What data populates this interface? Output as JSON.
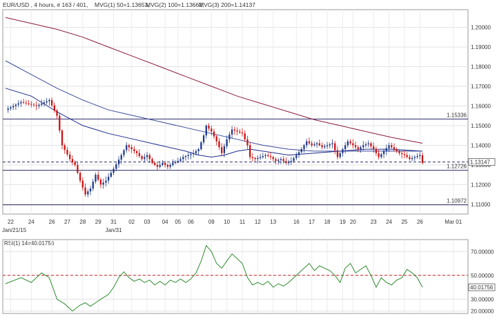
{
  "header": {
    "symbol": "EUR/USD , 4 hours, # 163 / 401,",
    "ma1": "MVG(1) 50=1.13653,",
    "ma2": "MVG(2) 100=1.13662,",
    "ma3": "MVG(3) 200=1.14137"
  },
  "colors": {
    "bull_candle": "#1f3a8a",
    "bear_candle": "#cc1111",
    "ma1": "#1a2a8a",
    "ma2": "#3a4a9a",
    "ma3": "#8b1a3a",
    "rsi": "#2e8b2e",
    "rsi_ref": "#cc2222",
    "hline": "#2a2a6a"
  },
  "chart_data": [
    {
      "type": "candlestick",
      "title": "",
      "x_tick_labels": [
        "22",
        "24",
        "26",
        "27",
        "28",
        "29",
        "31",
        "02",
        "03",
        "04",
        "05",
        "06",
        "09",
        "10",
        "11",
        "12",
        "13",
        "16",
        "17",
        "18",
        "19",
        "20",
        "23",
        "24",
        "25",
        "26",
        "Mar 01"
      ],
      "date_labels": [
        "Jan/21/15",
        "Jan/31"
      ],
      "y_tick_labels": [
        "1.20000",
        "1.19000",
        "1.18000",
        "1.17000",
        "1.16000",
        "1.15000",
        "1.14000",
        "1.13000",
        "1.12000",
        "1.11000"
      ],
      "ylim": [
        1.105,
        1.209
      ],
      "grid": true,
      "horizontal_levels": [
        {
          "value": 1.15336,
          "label": "1.15336",
          "style": "solid"
        },
        {
          "value": 1.12726,
          "label": "1.12726",
          "style": "solid"
        },
        {
          "value": 1.10972,
          "label": "1.10972",
          "style": "solid"
        },
        {
          "value": 1.13147,
          "label": "1.13147",
          "style": "dashed",
          "note": "current price"
        }
      ],
      "close_path": [
        [
          0,
          1.158
        ],
        [
          6,
          1.162
        ],
        [
          12,
          1.16
        ],
        [
          17,
          1.163
        ],
        [
          20,
          1.155
        ],
        [
          22,
          1.14
        ],
        [
          25,
          1.133
        ],
        [
          27,
          1.13
        ],
        [
          29,
          1.122
        ],
        [
          31,
          1.115
        ],
        [
          33,
          1.118
        ],
        [
          35,
          1.125
        ],
        [
          37,
          1.12
        ],
        [
          39,
          1.122
        ],
        [
          42,
          1.128
        ],
        [
          45,
          1.135
        ],
        [
          47,
          1.14
        ],
        [
          49,
          1.138
        ],
        [
          51,
          1.136
        ],
        [
          53,
          1.133
        ],
        [
          55,
          1.135
        ],
        [
          57,
          1.131
        ],
        [
          59,
          1.129
        ],
        [
          61,
          1.131
        ],
        [
          63,
          1.129
        ],
        [
          65,
          1.131
        ],
        [
          67,
          1.132
        ],
        [
          69,
          1.134
        ],
        [
          71,
          1.135
        ],
        [
          73,
          1.136
        ],
        [
          75,
          1.138
        ],
        [
          77,
          1.145
        ],
        [
          78,
          1.15
        ],
        [
          80,
          1.147
        ],
        [
          82,
          1.142
        ],
        [
          84,
          1.136
        ],
        [
          86,
          1.143
        ],
        [
          88,
          1.148
        ],
        [
          90,
          1.147
        ],
        [
          92,
          1.146
        ],
        [
          94,
          1.14
        ],
        [
          95,
          1.134
        ],
        [
          97,
          1.133
        ],
        [
          99,
          1.134
        ],
        [
          101,
          1.135
        ],
        [
          103,
          1.134
        ],
        [
          105,
          1.132
        ],
        [
          107,
          1.133
        ],
        [
          109,
          1.131
        ],
        [
          111,
          1.132
        ],
        [
          113,
          1.135
        ],
        [
          115,
          1.138
        ],
        [
          117,
          1.142
        ],
        [
          119,
          1.14
        ],
        [
          121,
          1.141
        ],
        [
          123,
          1.139
        ],
        [
          125,
          1.14
        ],
        [
          127,
          1.141
        ],
        [
          129,
          1.134
        ],
        [
          131,
          1.138
        ],
        [
          133,
          1.142
        ],
        [
          135,
          1.14
        ],
        [
          137,
          1.138
        ],
        [
          139,
          1.14
        ],
        [
          141,
          1.141
        ],
        [
          143,
          1.138
        ],
        [
          145,
          1.134
        ],
        [
          147,
          1.137
        ],
        [
          149,
          1.14
        ],
        [
          151,
          1.138
        ],
        [
          153,
          1.136
        ],
        [
          155,
          1.135
        ],
        [
          157,
          1.133
        ],
        [
          159,
          1.134
        ],
        [
          161,
          1.135
        ],
        [
          162,
          1.131
        ]
      ],
      "series": [
        {
          "name": "MVG(1) 50",
          "points": [
            [
              0,
              1.169
            ],
            [
              10,
              1.165
            ],
            [
              20,
              1.157
            ],
            [
              30,
              1.15
            ],
            [
              40,
              1.146
            ],
            [
              50,
              1.143
            ],
            [
              60,
              1.14
            ],
            [
              70,
              1.137
            ],
            [
              75,
              1.135
            ],
            [
              80,
              1.134
            ],
            [
              85,
              1.135
            ],
            [
              90,
              1.137
            ],
            [
              95,
              1.138
            ],
            [
              100,
              1.137
            ],
            [
              110,
              1.135
            ],
            [
              120,
              1.136
            ],
            [
              130,
              1.137
            ],
            [
              140,
              1.138
            ],
            [
              150,
              1.138
            ],
            [
              162,
              1.137
            ]
          ]
        },
        {
          "name": "MVG(2) 100",
          "points": [
            [
              0,
              1.183
            ],
            [
              10,
              1.176
            ],
            [
              20,
              1.169
            ],
            [
              30,
              1.163
            ],
            [
              40,
              1.158
            ],
            [
              50,
              1.155
            ],
            [
              60,
              1.152
            ],
            [
              70,
              1.149
            ],
            [
              80,
              1.146
            ],
            [
              90,
              1.143
            ],
            [
              100,
              1.14
            ],
            [
              110,
              1.138
            ],
            [
              120,
              1.137
            ],
            [
              130,
              1.137
            ],
            [
              140,
              1.137
            ],
            [
              150,
              1.137
            ],
            [
              162,
              1.137
            ]
          ]
        },
        {
          "name": "MVG(3) 200",
          "points": [
            [
              0,
              1.205
            ],
            [
              10,
              1.202
            ],
            [
              20,
              1.199
            ],
            [
              30,
              1.195
            ],
            [
              40,
              1.19
            ],
            [
              50,
              1.185
            ],
            [
              60,
              1.18
            ],
            [
              70,
              1.175
            ],
            [
              80,
              1.17
            ],
            [
              90,
              1.165
            ],
            [
              100,
              1.161
            ],
            [
              110,
              1.157
            ],
            [
              120,
              1.153
            ],
            [
              130,
              1.15
            ],
            [
              140,
              1.147
            ],
            [
              150,
              1.144
            ],
            [
              162,
              1.141
            ]
          ]
        }
      ]
    },
    {
      "type": "line",
      "title": "RSI(1) 14=40.01756",
      "y_tick_labels": [
        "70.00000",
        "50.00000",
        "30.00000",
        "20.00000"
      ],
      "ylim": [
        18,
        80
      ],
      "reference_line": 50,
      "current": {
        "value": 40.01756,
        "label": "40.01756"
      },
      "series": [
        {
          "name": "RSI(1) 14",
          "points": [
            [
              0,
              43
            ],
            [
              6,
              48
            ],
            [
              10,
              44
            ],
            [
              14,
              52
            ],
            [
              17,
              48
            ],
            [
              20,
              30
            ],
            [
              23,
              26
            ],
            [
              26,
              20
            ],
            [
              29,
              25
            ],
            [
              31,
              27
            ],
            [
              33,
              24
            ],
            [
              35,
              27
            ],
            [
              37,
              30
            ],
            [
              40,
              34
            ],
            [
              42,
              40
            ],
            [
              44,
              48
            ],
            [
              46,
              53
            ],
            [
              48,
              48
            ],
            [
              50,
              45
            ],
            [
              52,
              47
            ],
            [
              54,
              44
            ],
            [
              56,
              46
            ],
            [
              58,
              42
            ],
            [
              60,
              45
            ],
            [
              62,
              42
            ],
            [
              64,
              46
            ],
            [
              66,
              44
            ],
            [
              68,
              47
            ],
            [
              70,
              44
            ],
            [
              72,
              47
            ],
            [
              74,
              52
            ],
            [
              76,
              62
            ],
            [
              78,
              75
            ],
            [
              80,
              70
            ],
            [
              82,
              60
            ],
            [
              84,
              56
            ],
            [
              86,
              62
            ],
            [
              88,
              68
            ],
            [
              90,
              64
            ],
            [
              92,
              60
            ],
            [
              94,
              48
            ],
            [
              96,
              42
            ],
            [
              98,
              44
            ],
            [
              100,
              42
            ],
            [
              102,
              45
            ],
            [
              104,
              40
            ],
            [
              106,
              43
            ],
            [
              108,
              41
            ],
            [
              110,
              44
            ],
            [
              112,
              48
            ],
            [
              114,
              52
            ],
            [
              116,
              56
            ],
            [
              118,
              60
            ],
            [
              120,
              54
            ],
            [
              122,
              58
            ],
            [
              124,
              56
            ],
            [
              126,
              54
            ],
            [
              128,
              50
            ],
            [
              130,
              44
            ],
            [
              132,
              56
            ],
            [
              134,
              60
            ],
            [
              136,
              52
            ],
            [
              138,
              55
            ],
            [
              140,
              58
            ],
            [
              142,
              50
            ],
            [
              144,
              40
            ],
            [
              146,
              48
            ],
            [
              148,
              44
            ],
            [
              150,
              42
            ],
            [
              152,
              46
            ],
            [
              154,
              48
            ],
            [
              156,
              55
            ],
            [
              158,
              52
            ],
            [
              160,
              48
            ],
            [
              162,
              40
            ]
          ]
        }
      ]
    }
  ]
}
